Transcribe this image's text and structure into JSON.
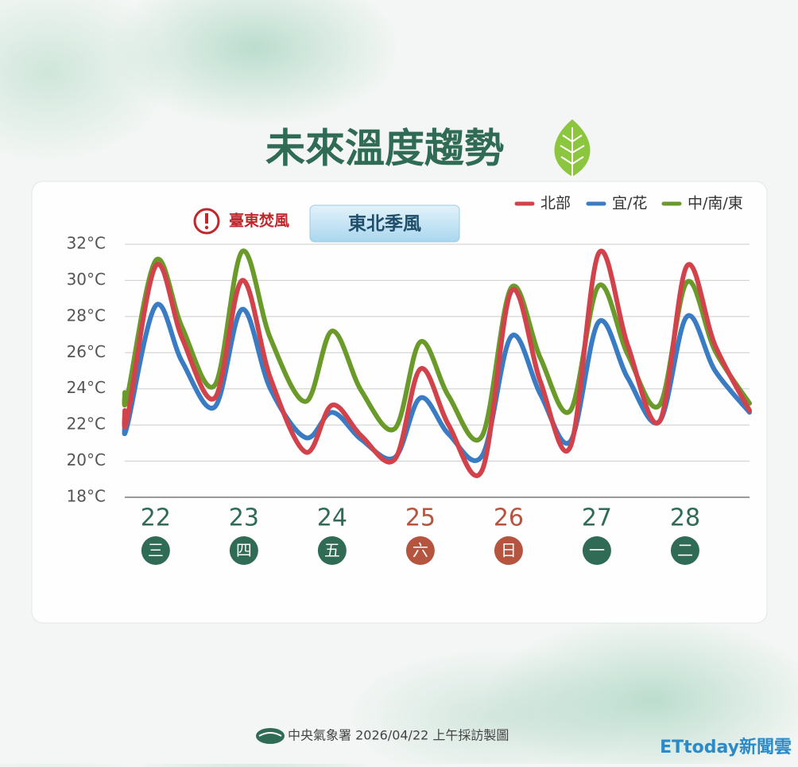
{
  "chart_data": {
    "type": "line",
    "title": "未來溫度趨勢",
    "annotations": [
      "臺東焚風",
      "東北季風"
    ],
    "source": "中央氣象署 2026/04/22 上午採訪製圖",
    "watermark": "ETtoday新聞雲",
    "x": [
      21.65,
      21.68,
      22.0,
      22.3,
      22.67,
      22.98,
      23.3,
      23.7,
      24.0,
      24.33,
      24.71,
      25.0,
      25.32,
      25.7,
      26.03,
      26.36,
      26.7,
      27.02,
      27.35,
      27.71,
      28.02,
      28.34,
      28.73
    ],
    "series": [
      {
        "name": "北部",
        "color": "#d2424a",
        "values": [
          22.8,
          22.4,
          30.8,
          26.8,
          23.5,
          30.0,
          24.6,
          20.5,
          23.1,
          21.4,
          20.1,
          25.1,
          22.0,
          19.5,
          29.4,
          24.4,
          20.8,
          31.5,
          26.4,
          22.2,
          30.8,
          26.4,
          22.8
        ]
      },
      {
        "name": "宜/花",
        "color": "#3a7cc4",
        "values": [
          22.0,
          22.0,
          28.6,
          25.5,
          23.0,
          28.4,
          24.0,
          21.3,
          22.7,
          21.2,
          20.2,
          23.5,
          21.5,
          20.3,
          26.9,
          23.7,
          21.1,
          27.7,
          24.6,
          22.2,
          28.0,
          25.0,
          22.7
        ]
      },
      {
        "name": "中/南/東",
        "color": "#6a9a2a",
        "values": [
          23.8,
          23.6,
          31.1,
          27.4,
          24.2,
          31.6,
          26.8,
          23.3,
          27.2,
          23.9,
          21.8,
          26.6,
          23.6,
          21.4,
          29.6,
          25.7,
          22.8,
          29.7,
          25.9,
          23.1,
          29.9,
          26.1,
          23.2
        ]
      }
    ],
    "xlim": [
      21.65,
      28.73
    ],
    "xticks": [
      22,
      23,
      24,
      25,
      26,
      27,
      28
    ],
    "weekdays": [
      "三",
      "四",
      "五",
      "六",
      "日",
      "一",
      "二"
    ],
    "weekday_colors": [
      "#2f6b55",
      "#2f6b55",
      "#2f6b55",
      "#b5553f",
      "#b5553f",
      "#2f6b55",
      "#2f6b55"
    ],
    "xtick_colors": [
      "#2f6b55",
      "#2f6b55",
      "#2f6b55",
      "#b5553f",
      "#b5553f",
      "#2f6b55",
      "#2f6b55"
    ],
    "ylim": [
      18,
      32
    ],
    "yticks": [
      {
        "value": 18,
        "label": "18°C"
      },
      {
        "value": 20,
        "label": "20°C"
      },
      {
        "value": 22,
        "label": "22°C"
      },
      {
        "value": 24,
        "label": "24°C"
      },
      {
        "value": 26,
        "label": "26°C"
      },
      {
        "value": 28,
        "label": "28°C"
      },
      {
        "value": 30,
        "label": "30°C"
      },
      {
        "value": 32,
        "label": "32°C"
      }
    ],
    "grid": true,
    "legend": "top-right"
  }
}
